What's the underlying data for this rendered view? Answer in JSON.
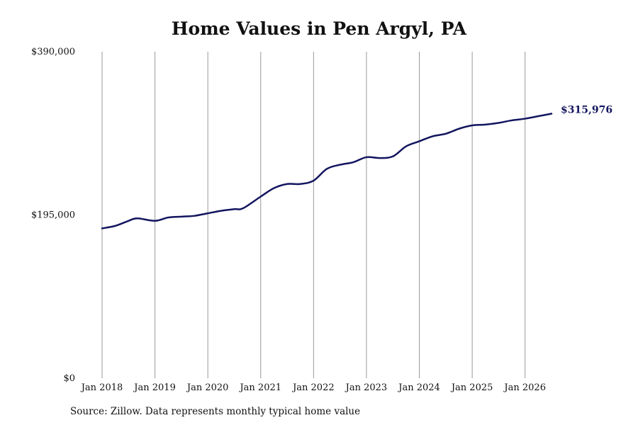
{
  "title": "Home Values in Pen Argyl, PA",
  "source": "Source: Zillow. Data represents monthly typical home value",
  "colors": {
    "line": "#12155e",
    "grid": "#9a9a9a",
    "text": "#111111"
  },
  "chart_data": {
    "type": "line",
    "title": "Home Values in Pen Argyl, PA",
    "xlabel": "",
    "ylabel": "",
    "ylim": [
      0,
      390000
    ],
    "xlim": [
      "2018-01",
      "2026-07"
    ],
    "grid": {
      "vertical": true,
      "horizontal": false
    },
    "legend": "none",
    "y_ticks": [
      0,
      195000,
      390000
    ],
    "y_tick_labels": [
      "$0",
      "$195,000",
      "$390,000"
    ],
    "x_ticks": [
      "2018-01",
      "2019-01",
      "2020-01",
      "2021-01",
      "2022-01",
      "2023-01",
      "2024-01",
      "2025-01",
      "2026-01"
    ],
    "x_tick_labels": [
      "Jan 2018",
      "Jan 2019",
      "Jan 2020",
      "Jan 2021",
      "Jan 2022",
      "Jan 2023",
      "Jan 2024",
      "Jan 2025",
      "Jan 2026"
    ],
    "end_label": "$315,976",
    "series": [
      {
        "color": "#12155e",
        "points": [
          [
            "2018-01",
            179000
          ],
          [
            "2018-04",
            182000
          ],
          [
            "2018-07",
            188000
          ],
          [
            "2018-09",
            191000
          ],
          [
            "2019-01",
            188000
          ],
          [
            "2019-04",
            192000
          ],
          [
            "2019-07",
            193000
          ],
          [
            "2019-10",
            194000
          ],
          [
            "2020-01",
            197000
          ],
          [
            "2020-04",
            200000
          ],
          [
            "2020-07",
            202000
          ],
          [
            "2020-09",
            203000
          ],
          [
            "2021-01",
            217000
          ],
          [
            "2021-04",
            227000
          ],
          [
            "2021-07",
            232000
          ],
          [
            "2021-10",
            232000
          ],
          [
            "2022-01",
            236000
          ],
          [
            "2022-04",
            250000
          ],
          [
            "2022-07",
            255000
          ],
          [
            "2022-10",
            258000
          ],
          [
            "2023-01",
            264000
          ],
          [
            "2023-04",
            263000
          ],
          [
            "2023-07",
            265000
          ],
          [
            "2023-10",
            277000
          ],
          [
            "2024-01",
            283000
          ],
          [
            "2024-04",
            289000
          ],
          [
            "2024-07",
            292000
          ],
          [
            "2024-10",
            298000
          ],
          [
            "2025-01",
            302000
          ],
          [
            "2025-04",
            303000
          ],
          [
            "2025-07",
            305000
          ],
          [
            "2025-10",
            308000
          ],
          [
            "2026-01",
            310000
          ],
          [
            "2026-04",
            313000
          ],
          [
            "2026-07",
            315976
          ]
        ]
      }
    ]
  }
}
